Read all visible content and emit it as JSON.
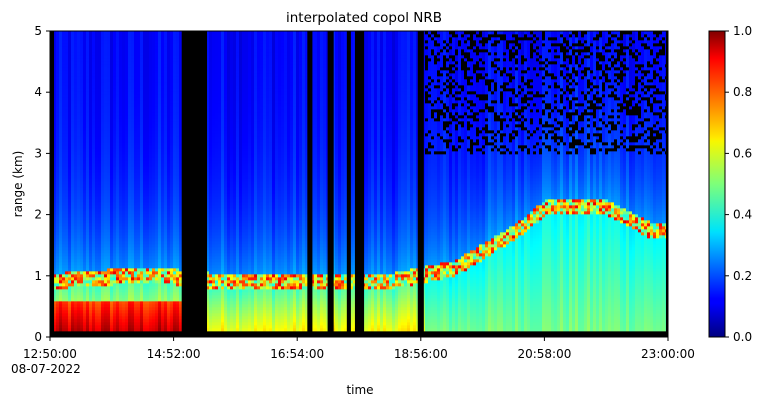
{
  "chart_data": {
    "type": "heatmap",
    "title": "interpolated copol NRB",
    "xlabel": "time",
    "ylabel": "range (km)",
    "x_ticks": [
      "12:50:00",
      "14:52:00",
      "16:54:00",
      "18:56:00",
      "20:58:00",
      "23:00:00"
    ],
    "x_start_label": "08-07-2022",
    "x_range": [
      "12:50:00",
      "23:00:00"
    ],
    "y_ticks": [
      "0",
      "1",
      "2",
      "3",
      "4",
      "5"
    ],
    "ylim": [
      0,
      5
    ],
    "colorbar": {
      "colormap": "jet",
      "range": [
        0.0,
        1.0
      ],
      "ticks": [
        "0.0",
        "0.2",
        "0.4",
        "0.6",
        "0.8",
        "1.0"
      ]
    },
    "data_gaps": [
      [
        "12:50:00",
        "12:54:00"
      ],
      [
        "15:00:00",
        "15:25:00"
      ],
      [
        "17:04:00",
        "17:09:00"
      ],
      [
        "17:24:00",
        "17:30:00"
      ],
      [
        "17:43:00",
        "17:47:00"
      ],
      [
        "17:51:00",
        "18:00:00"
      ],
      [
        "18:53:00",
        "18:59:00"
      ],
      [
        "22:58:00",
        "23:00:00"
      ]
    ],
    "boundary_layer_top_km": [
      {
        "time": "13:00:00",
        "value": 0.8
      },
      {
        "time": "14:30:00",
        "value": 0.9
      },
      {
        "time": "15:30:00",
        "value": 0.8
      },
      {
        "time": "16:30:00",
        "value": 0.8
      },
      {
        "time": "18:30:00",
        "value": 0.8
      },
      {
        "time": "19:30:00",
        "value": 1.0
      },
      {
        "time": "20:00:00",
        "value": 1.3
      },
      {
        "time": "20:30:00",
        "value": 1.6
      },
      {
        "time": "21:00:00",
        "value": 2.0
      },
      {
        "time": "22:00:00",
        "value": 2.0
      },
      {
        "time": "22:45:00",
        "value": 1.6
      }
    ]
  }
}
